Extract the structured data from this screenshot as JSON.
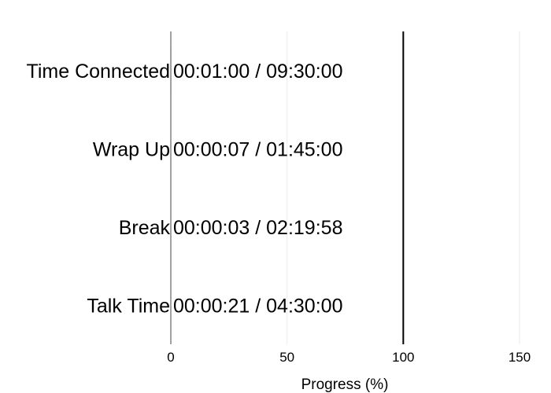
{
  "chart_data": {
    "type": "bar",
    "orientation": "horizontal",
    "categories": [
      "Time Connected",
      "Wrap Up",
      "Break",
      "Talk Time"
    ],
    "values": [
      0.18,
      0.11,
      0.04,
      0.13
    ],
    "value_labels": [
      "00:01:00 / 09:30:00",
      "00:00:07 / 01:45:00",
      "00:00:03 / 02:19:58",
      "00:00:21 / 04:30:00"
    ],
    "xlabel": "Progress (%)",
    "xlim": [
      0,
      150
    ],
    "xticks": [
      0,
      50,
      100,
      150
    ],
    "target_line": 100,
    "grid": true,
    "colors": {
      "bar": "#1f77b4",
      "grid": "#ebebeb",
      "axis": "#444444",
      "target": "#000000",
      "text": "#000000"
    }
  }
}
